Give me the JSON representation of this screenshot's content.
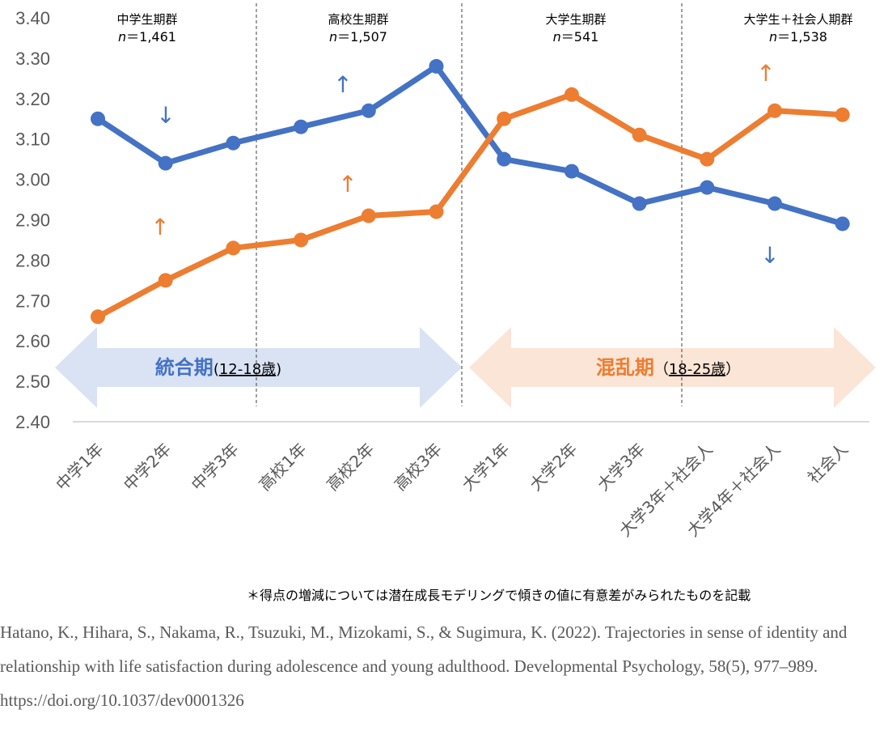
{
  "chart_data": {
    "type": "line",
    "categories": [
      "中学1年",
      "中学2年",
      "中学3年",
      "高校1年",
      "高校2年",
      "高校3年",
      "大学1年",
      "大学2年",
      "大学3年",
      "大学3年＋社会人",
      "大学4年＋社会人",
      "社会人"
    ],
    "series": [
      {
        "color": "#4472C4",
        "values": [
          3.15,
          3.04,
          3.09,
          3.13,
          3.17,
          3.28,
          3.05,
          3.02,
          2.94,
          2.98,
          2.94,
          2.89
        ]
      },
      {
        "color": "#ED7D31",
        "values": [
          2.66,
          2.75,
          2.83,
          2.85,
          2.91,
          2.92,
          3.15,
          3.21,
          3.11,
          3.05,
          3.17,
          3.16
        ]
      }
    ],
    "ylim": [
      2.4,
      3.4
    ],
    "yticks": [
      "2.40",
      "2.50",
      "2.60",
      "2.70",
      "2.80",
      "2.90",
      "3.00",
      "3.10",
      "3.20",
      "3.30",
      "3.40"
    ],
    "grid": false,
    "groups": [
      {
        "title": "中学生期群",
        "n_prefix": "n",
        "n_value": "＝1,461"
      },
      {
        "title": "高校生期群",
        "n_prefix": "n",
        "n_value": "＝1,507"
      },
      {
        "title": "大学生期群",
        "n_prefix": "n",
        "n_value": "＝541"
      },
      {
        "title": "大学生＋社会人期群",
        "n_prefix": "n",
        "n_value": "＝1,538"
      }
    ],
    "phases": [
      {
        "name": "統合期",
        "age": "12-18歳",
        "open": "(",
        "close": ")",
        "color": "#4472C4",
        "fill": "#DAE3F3"
      },
      {
        "name": "混乱期",
        "age": "18-25歳",
        "open": "（",
        "close": "）",
        "color": "#ED7D31",
        "fill": "#FBE5D6"
      }
    ],
    "trend_arrows": [
      {
        "glyph": "↓",
        "color": "#4472C4"
      },
      {
        "glyph": "↑",
        "color": "#4472C4"
      },
      {
        "glyph": "↑",
        "color": "#ED7D31"
      },
      {
        "glyph": "↑",
        "color": "#ED7D31"
      },
      {
        "glyph": "↑",
        "color": "#ED7D31"
      },
      {
        "glyph": "↓",
        "color": "#4472C4"
      }
    ]
  },
  "note": "＊得点の増減については潜在成長モデリングで傾きの値に有意差がみられたものを記載",
  "citation": "Hatano, K., Hihara, S., Nakama, R., Tsuzuki, M., Mizokami, S., & Sugimura, K. (2022). Trajectories in sense of identity and relationship with life satisfaction during adolescence and young adulthood. Developmental Psychology, 58(5), 977–989. https://doi.org/10.1037/dev0001326"
}
